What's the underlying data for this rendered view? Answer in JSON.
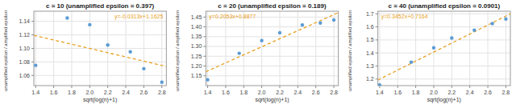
{
  "chart_data": [
    {
      "type": "scatter",
      "title": "c = 10 (unamplified epsilon = 0.397)",
      "x_label": "sqrt(log(n)+1)",
      "y_label": "unamplified epsilon / amplified epsilon",
      "annotation": "y=-0.0313x+1.1625",
      "series": [
        {
          "type": "scatter",
          "color": "#5b9bd5",
          "marker": "circle",
          "x": [
            1.4,
            1.75,
            2.0,
            2.2,
            2.45,
            2.6,
            2.8
          ],
          "values": [
            1.075,
            1.145,
            1.135,
            1.105,
            1.095,
            1.07,
            1.05
          ]
        },
        {
          "type": "line",
          "color": "#e8a020",
          "line_style": "dashed",
          "x": [
            1.38,
            2.85
          ],
          "values": [
            1.119306,
            1.073295
          ]
        }
      ],
      "xlim": [
        1.38,
        2.85
      ],
      "ylim": [
        1.045,
        1.155
      ],
      "xticks": [
        1.4,
        1.6,
        1.8,
        {
          "value": 2.0,
          "label": "2.0"
        },
        2.2,
        2.4,
        2.6,
        2.8
      ],
      "yticks": [
        1.06,
        1.08,
        {
          "value": 1.1,
          "label": "1.10"
        },
        1.12,
        1.14
      ],
      "grid": true
    },
    {
      "type": "scatter",
      "title": "c = 20 (unamplified epsilon = 0.189)",
      "x_label": "sqrt(log(n)+1)",
      "y_label": "unamplified epsilon / amplified epsilon",
      "annotation": "y=0.2053x+0.8877",
      "series": [
        {
          "type": "scatter",
          "color": "#5b9bd5",
          "marker": "circle",
          "x": [
            1.4,
            1.75,
            2.0,
            2.2,
            2.45,
            2.65,
            2.8
          ],
          "values": [
            1.13,
            1.265,
            1.33,
            1.37,
            1.41,
            1.42,
            1.435
          ]
        },
        {
          "type": "line",
          "color": "#e8a020",
          "line_style": "dashed",
          "x": [
            1.38,
            2.85
          ],
          "values": [
            1.171014,
            1.472805
          ]
        }
      ],
      "xlim": [
        1.38,
        2.85
      ],
      "ylim": [
        1.1,
        1.48
      ],
      "xticks": [
        1.4,
        1.6,
        1.8,
        {
          "value": 2.0,
          "label": "2.0"
        },
        2.2,
        2.4,
        2.6,
        2.8
      ],
      "yticks": [
        1.15,
        {
          "value": 1.2,
          "label": "1.20"
        },
        1.25,
        {
          "value": 1.3,
          "label": "1.30"
        },
        1.35,
        {
          "value": 1.4,
          "label": "1.40"
        },
        1.45
      ],
      "grid": true
    },
    {
      "type": "scatter",
      "title": "c = 40 (unamplified epsilon = 0.0901)",
      "x_label": "sqrt(log(n)+1)",
      "y_label": "unamplified epsilon / amplified epsilon",
      "annotation": "y=0.3452x+0.7164",
      "series": [
        {
          "type": "scatter",
          "color": "#5b9bd5",
          "marker": "circle",
          "x": [
            1.4,
            1.75,
            2.0,
            2.2,
            2.45,
            2.65,
            2.8
          ],
          "values": [
            1.155,
            1.33,
            1.44,
            1.515,
            1.575,
            1.625,
            1.66
          ]
        },
        {
          "type": "line",
          "color": "#e8a020",
          "line_style": "dashed",
          "x": [
            1.38,
            2.85
          ],
          "values": [
            1.192776,
            1.70022
          ]
        }
      ],
      "xlim": [
        1.38,
        2.85
      ],
      "ylim": [
        1.15,
        1.72
      ],
      "xticks": [
        1.4,
        1.6,
        1.8,
        {
          "value": 2.0,
          "label": "2.0"
        },
        2.2,
        2.4,
        2.6,
        2.8
      ],
      "yticks": [
        1.2,
        1.3,
        1.4,
        1.5,
        1.6,
        1.7
      ],
      "grid": true
    }
  ]
}
